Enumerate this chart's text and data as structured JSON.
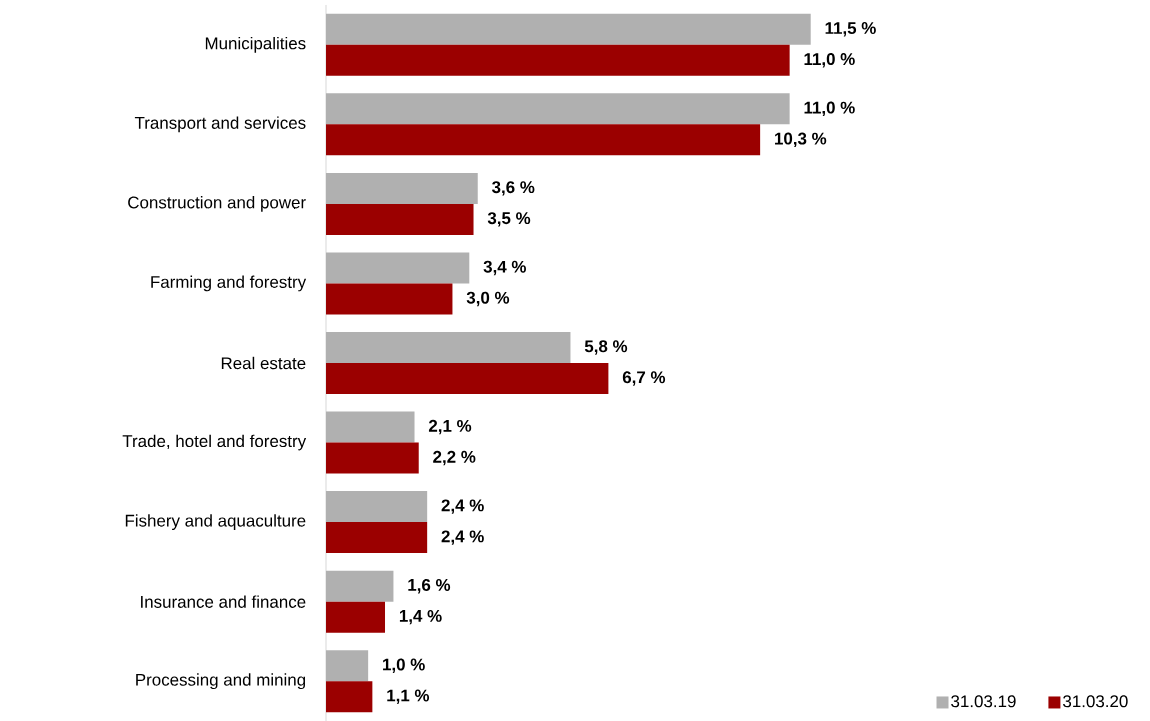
{
  "chart_data": {
    "type": "bar",
    "orientation": "horizontal",
    "categories": [
      "Municipalities",
      "Transport and services",
      "Construction and power",
      "Farming and forestry",
      "Real estate",
      "Trade, hotel and forestry",
      "Fishery and aquaculture",
      "Insurance and finance",
      "Processing and mining"
    ],
    "series": [
      {
        "name": "31.03.19",
        "color": "#b0b0b0",
        "values": [
          11.5,
          11.0,
          3.6,
          3.4,
          5.8,
          2.1,
          2.4,
          1.6,
          1.0
        ],
        "value_labels": [
          "11,5 %",
          "11,0 %",
          "3,6 %",
          "3,4 %",
          "5,8 %",
          "2,1 %",
          "2,4 %",
          "1,6 %",
          "1,0 %"
        ]
      },
      {
        "name": "31.03.20",
        "color": "#9b0000",
        "values": [
          11.0,
          10.3,
          3.5,
          3.0,
          6.7,
          2.2,
          2.4,
          1.4,
          1.1
        ],
        "value_labels": [
          "11,0 %",
          "10,3 %",
          "3,5 %",
          "3,0 %",
          "6,7 %",
          "2,2 %",
          "2,4 %",
          "1,4 %",
          "1,1 %"
        ]
      }
    ],
    "legend": "bottom right"
  }
}
